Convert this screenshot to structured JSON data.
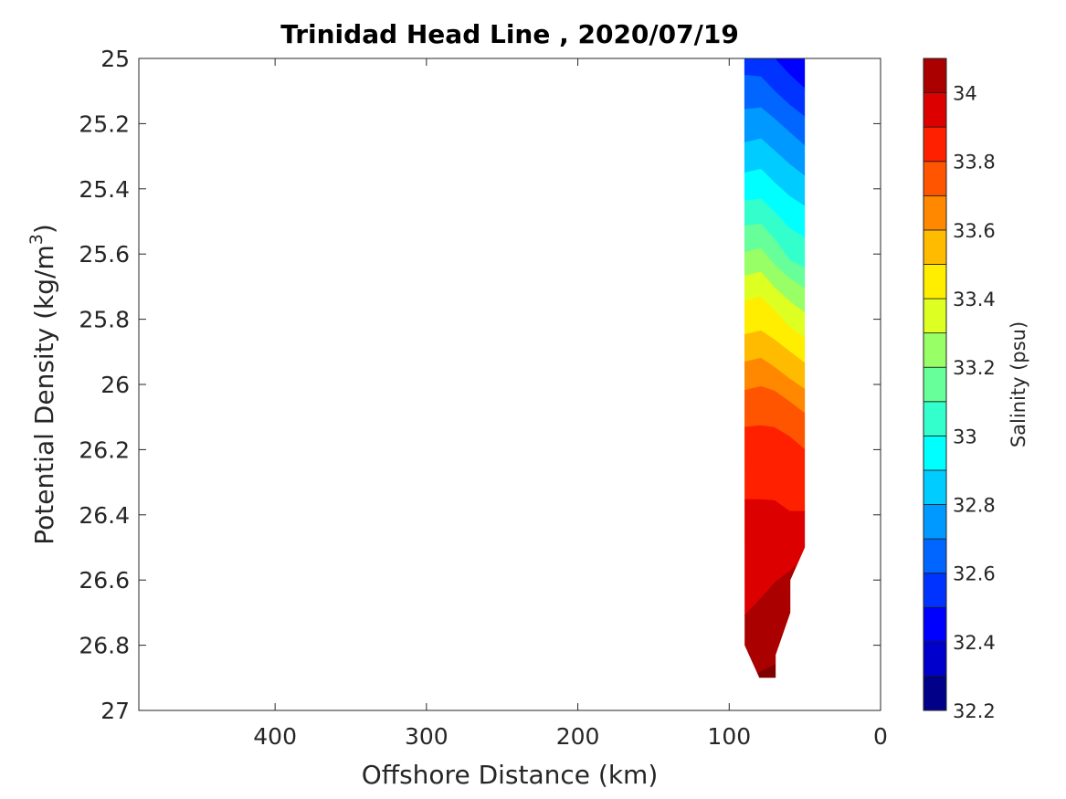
{
  "chart_data": {
    "type": "contourf",
    "title": "Trinidad Head Line , 2020/07/19",
    "xlabel": "Offshore Distance (km)",
    "ylabel_main": "Potential Density (kg/m",
    "ylabel_sup": "3",
    "ylabel_end": ")",
    "xlim": [
      0,
      490
    ],
    "x_reversed": true,
    "ylim": [
      25,
      27
    ],
    "y_reversed": true,
    "xticks": [
      0,
      100,
      200,
      300,
      400
    ],
    "xtick_labels": [
      "0",
      "100",
      "200",
      "300",
      "400"
    ],
    "yticks": [
      25,
      25.2,
      25.4,
      25.6,
      25.8,
      26,
      26.2,
      26.4,
      26.6,
      26.8,
      27
    ],
    "ytick_labels": [
      "25",
      "25.2",
      "25.4",
      "25.6",
      "25.8",
      "26",
      "26.2",
      "26.4",
      "26.6",
      "26.8",
      "27"
    ],
    "colorbar": {
      "label": "Salinity (psu)",
      "range": [
        32.2,
        34.1
      ],
      "ticks": [
        32.2,
        32.4,
        32.6,
        32.8,
        33,
        33.2,
        33.4,
        33.6,
        33.8,
        34
      ],
      "tick_labels": [
        "32.2",
        "32.4",
        "32.6",
        "32.8",
        "33",
        "33.2",
        "33.4",
        "33.6",
        "33.8",
        "34"
      ],
      "levels": [
        32.2,
        32.3,
        32.4,
        32.5,
        32.6,
        32.7,
        32.8,
        32.9,
        33.0,
        33.1,
        33.2,
        33.3,
        33.4,
        33.5,
        33.6,
        33.7,
        33.8,
        33.9,
        34.0
      ],
      "colors": [
        "#000088",
        "#0000cc",
        "#0000ff",
        "#0033ff",
        "#0066ff",
        "#0099ff",
        "#00ccff",
        "#00ffff",
        "#33ffcc",
        "#66ff99",
        "#99ff66",
        "#ddff22",
        "#ffee00",
        "#ffbb00",
        "#ff8800",
        "#ff5500",
        "#ff2000",
        "#dd0000",
        "#aa0000"
      ]
    },
    "data_outline": [
      [
        90,
        25
      ],
      [
        50,
        25
      ],
      [
        50,
        26.5
      ],
      [
        59.6,
        26.6
      ],
      [
        59.6,
        26.7
      ],
      [
        69.3,
        26.83
      ],
      [
        69.3,
        26.9
      ],
      [
        80.1,
        26.9
      ],
      [
        89.8,
        26.8
      ]
    ],
    "boundary_distances_km": [
      90,
      79,
      70,
      60,
      50
    ],
    "band_levels": [
      32.4,
      32.5,
      32.6,
      32.7,
      32.8,
      32.9,
      33.0,
      33.1,
      33.2,
      33.3,
      33.4,
      33.5,
      33.6,
      33.7,
      33.8,
      33.9,
      34.0,
      34.1
    ],
    "band_colors": [
      "#0000ff",
      "#0033ff",
      "#0066ff",
      "#0099ff",
      "#00ccff",
      "#00ffff",
      "#33ffcc",
      "#66ff99",
      "#99ff66",
      "#ddff22",
      "#ffee00",
      "#ffbb00",
      "#ff8800",
      "#ff5500",
      "#ff2000",
      "#dd0000",
      "#aa0000",
      "#800000"
    ],
    "contour_boundaries_density": [
      [
        25.0,
        25.0,
        25.0,
        25.05,
        25.1
      ],
      [
        25.05,
        25.056,
        25.1,
        25.143,
        25.185
      ],
      [
        25.157,
        25.151,
        25.185,
        25.227,
        25.275
      ],
      [
        25.26,
        25.246,
        25.283,
        25.325,
        25.367
      ],
      [
        25.353,
        25.339,
        25.381,
        25.423,
        25.459
      ],
      [
        25.437,
        25.431,
        25.471,
        25.521,
        25.555
      ],
      [
        25.515,
        25.507,
        25.555,
        25.619,
        25.647
      ],
      [
        25.597,
        25.583,
        25.633,
        25.675,
        25.711
      ],
      [
        25.669,
        25.655,
        25.703,
        25.745,
        25.787
      ],
      [
        25.745,
        25.731,
        25.773,
        25.824,
        25.863
      ],
      [
        25.849,
        25.835,
        25.863,
        25.899,
        25.941
      ],
      [
        25.933,
        25.919,
        25.947,
        25.983,
        26.02
      ],
      [
        26.02,
        26.006,
        26.02,
        26.053,
        26.095
      ],
      [
        26.132,
        26.126,
        26.132,
        26.16,
        26.207
      ],
      [
        26.353,
        26.353,
        26.356,
        26.389,
        26.389
      ],
      [
        26.717,
        26.655,
        26.608,
        26.571,
        26.53
      ],
      [
        26.92,
        26.88,
        26.86,
        26.86,
        26.86
      ]
    ]
  }
}
